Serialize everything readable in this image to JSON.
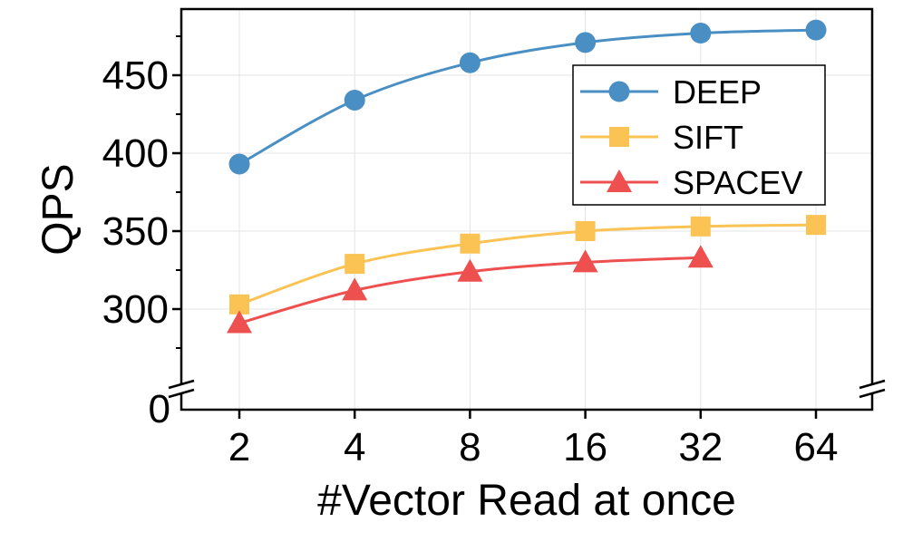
{
  "chart_data": {
    "type": "line",
    "xlabel": "#Vector Read at once",
    "ylabel": "QPS",
    "categories": [
      "2",
      "4",
      "8",
      "16",
      "32",
      "64"
    ],
    "y_ticks": [
      300,
      350,
      400,
      450
    ],
    "y_break_label": "0",
    "ylim": [
      250,
      475
    ],
    "grid": true,
    "legend_position": "top-right",
    "series": [
      {
        "name": "DEEP",
        "color": "#4a8fc4",
        "marker": "circle",
        "values": [
          393,
          434,
          458,
          471,
          477,
          479
        ]
      },
      {
        "name": "SIFT",
        "color": "#fbc353",
        "marker": "square",
        "values": [
          303,
          329,
          342,
          350,
          353,
          354
        ]
      },
      {
        "name": "SPACEV",
        "color": "#ee4f4f",
        "marker": "triangle",
        "values": [
          291,
          312,
          324,
          330,
          333,
          null
        ]
      }
    ]
  }
}
